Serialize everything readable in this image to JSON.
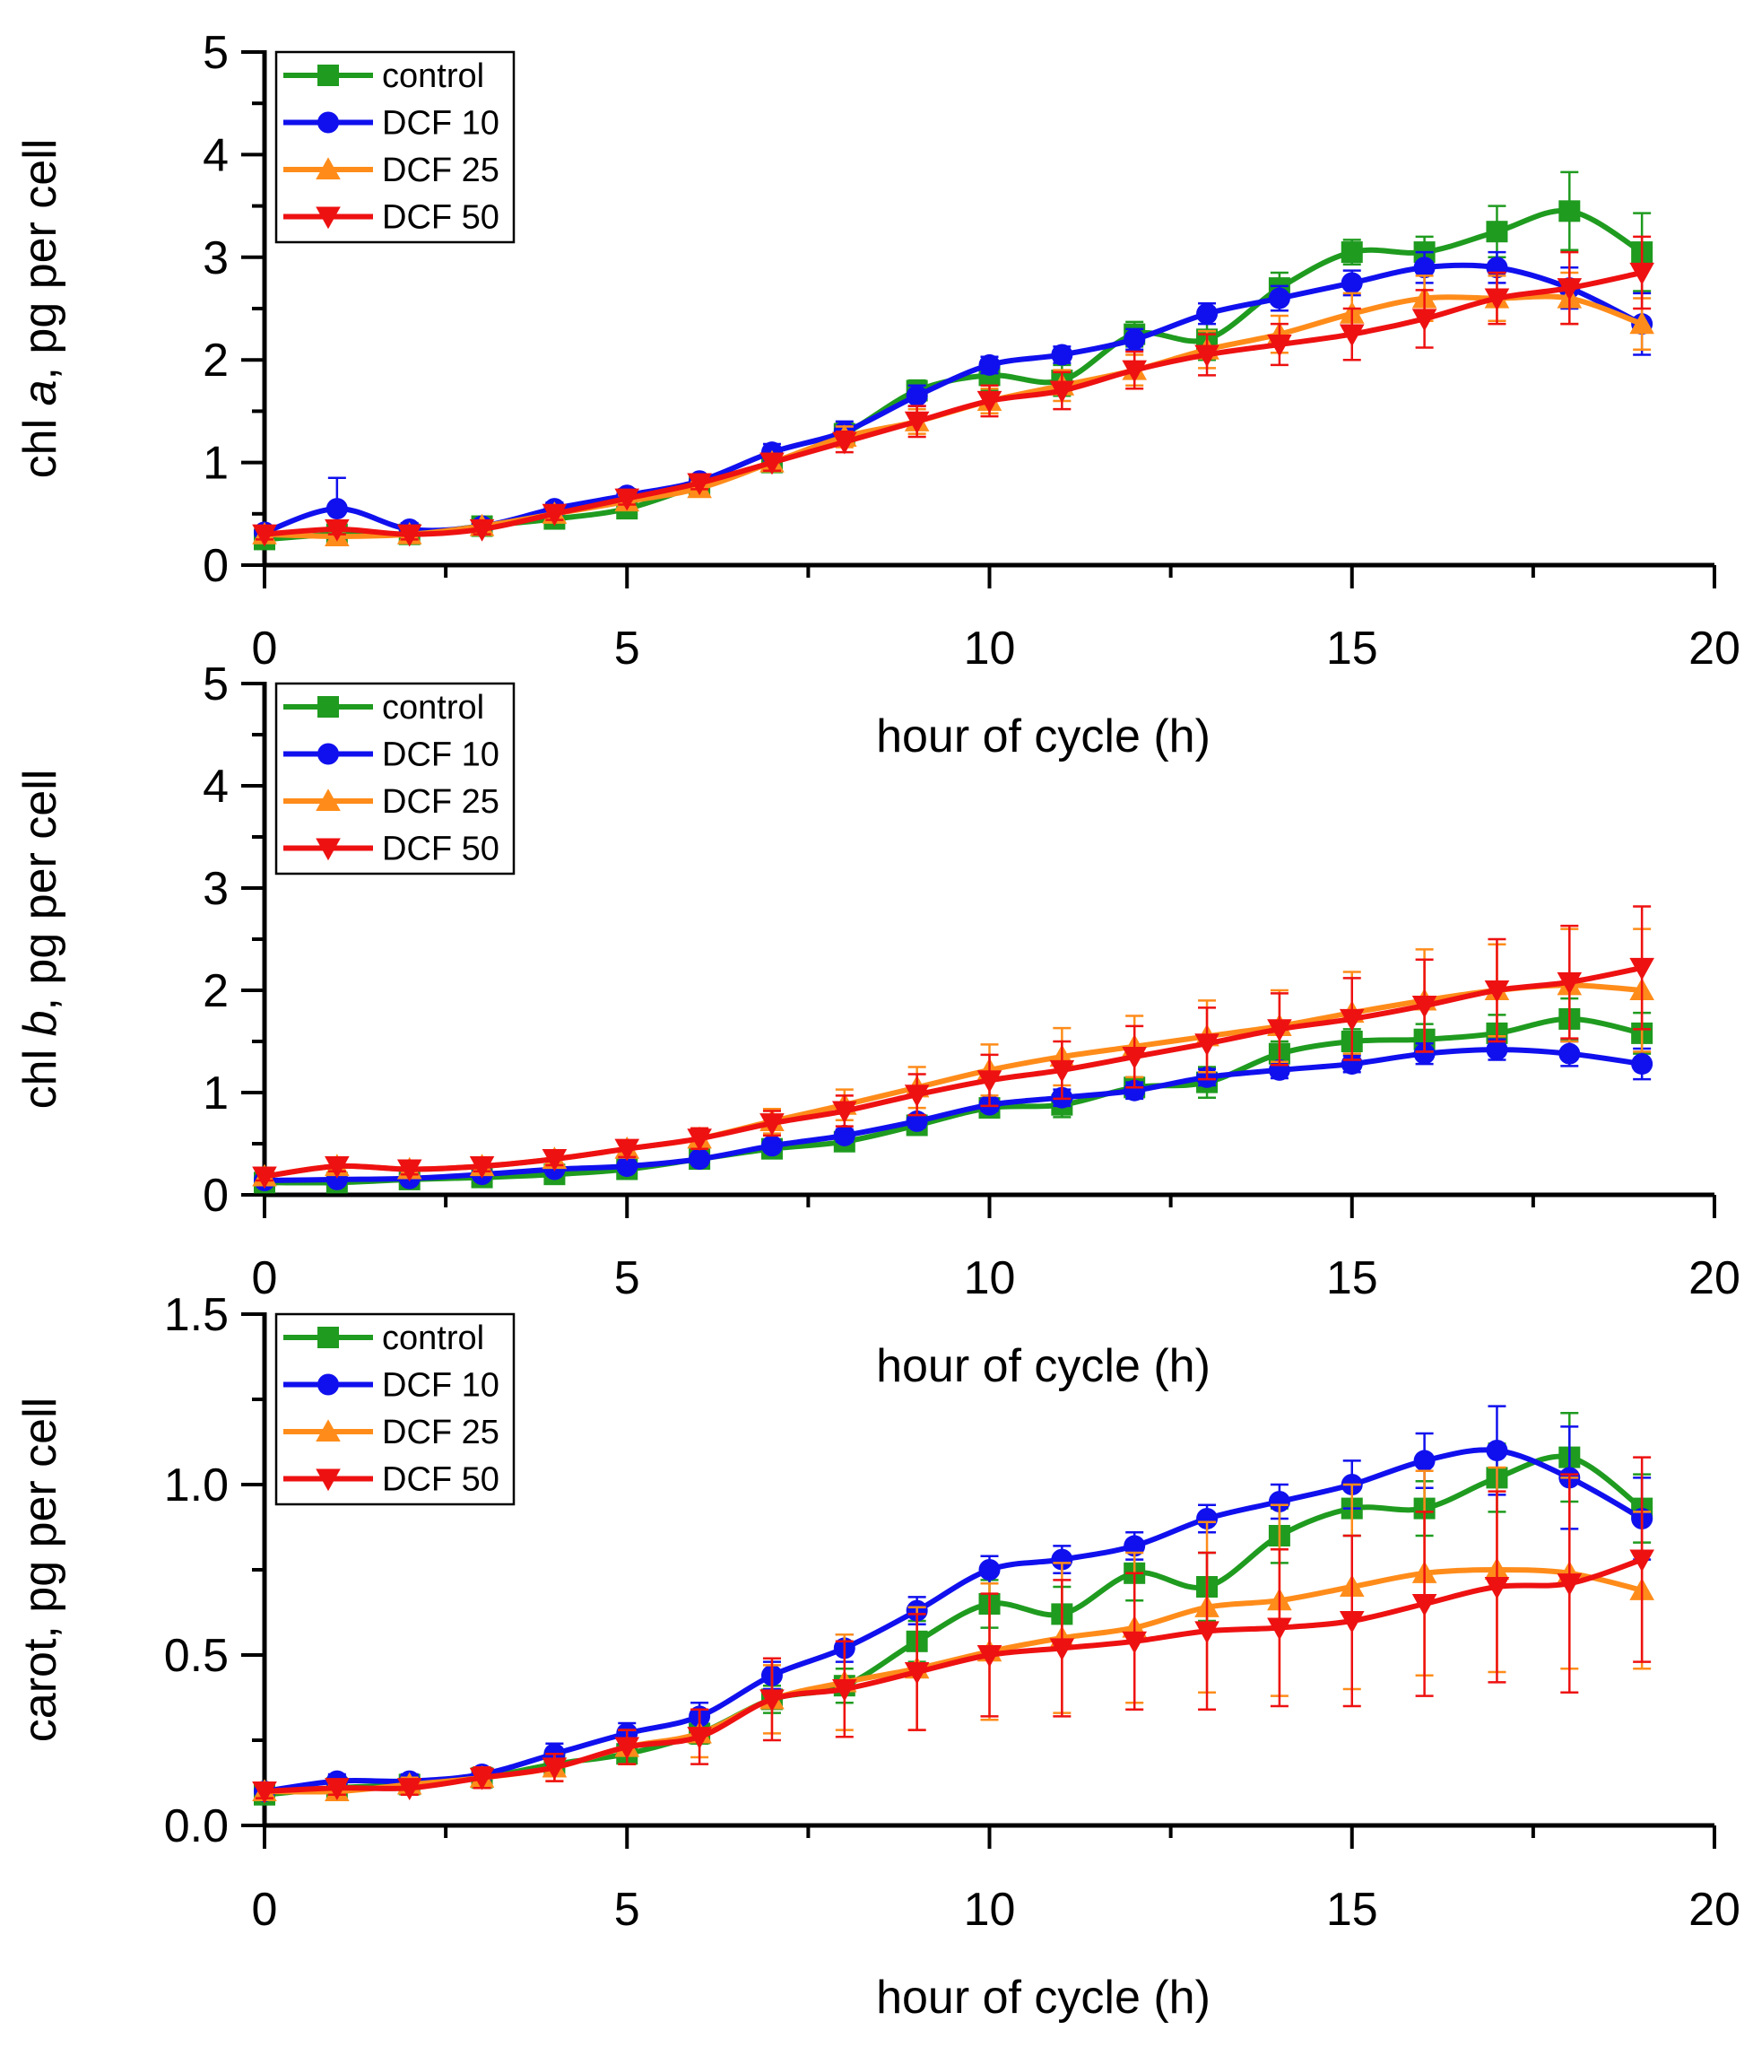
{
  "colors": {
    "control": "#1f9b1f",
    "dcf10": "#1010ee",
    "dcf25": "#ff8c1a",
    "dcf50": "#ee1111"
  },
  "legend": [
    {
      "name": "control",
      "marker": "square"
    },
    {
      "name": "DCF 10",
      "marker": "circle"
    },
    {
      "name": "DCF 25",
      "marker": "triangle-up"
    },
    {
      "name": "DCF 50",
      "marker": "triangle-down"
    }
  ],
  "chart_data": [
    {
      "type": "line",
      "ylabel_prefix": "chl ",
      "ylabel_italic": "a",
      "ylabel_suffix": ", pg per cell",
      "xlabel": "hour of cycle (h)",
      "xlim": [
        0,
        20
      ],
      "ylim": [
        0,
        5
      ],
      "xticks": [
        "0",
        "5",
        "10",
        "15",
        "20"
      ],
      "yticks": [
        "0",
        "1",
        "2",
        "3",
        "4",
        "5"
      ],
      "x": [
        0,
        1,
        2,
        3,
        4,
        5,
        6,
        7,
        8,
        9,
        10,
        11,
        12,
        13,
        14,
        15,
        16,
        17,
        18,
        19
      ],
      "series": [
        {
          "name": "control",
          "values": [
            0.25,
            0.3,
            0.3,
            0.38,
            0.45,
            0.55,
            0.78,
            1.0,
            1.28,
            1.7,
            1.85,
            1.8,
            2.25,
            2.2,
            2.7,
            3.05,
            3.05,
            3.25,
            3.45,
            3.05
          ],
          "errors": [
            0.06,
            0.06,
            0.05,
            0.06,
            0.06,
            0.06,
            0.06,
            0.08,
            0.1,
            0.1,
            0.15,
            0.15,
            0.12,
            0.2,
            0.15,
            0.12,
            0.15,
            0.25,
            0.38,
            0.38
          ]
        },
        {
          "name": "DCF 10",
          "values": [
            0.32,
            0.55,
            0.35,
            0.38,
            0.55,
            0.68,
            0.82,
            1.1,
            1.3,
            1.65,
            1.95,
            2.05,
            2.2,
            2.45,
            2.6,
            2.75,
            2.9,
            2.9,
            2.7,
            2.35
          ],
          "errors": [
            0.06,
            0.3,
            0.06,
            0.05,
            0.06,
            0.06,
            0.06,
            0.08,
            0.1,
            0.1,
            0.08,
            0.08,
            0.1,
            0.1,
            0.12,
            0.12,
            0.15,
            0.15,
            0.2,
            0.3
          ]
        },
        {
          "name": "DCF 25",
          "values": [
            0.3,
            0.28,
            0.3,
            0.38,
            0.5,
            0.62,
            0.75,
            1.0,
            1.25,
            1.4,
            1.6,
            1.75,
            1.9,
            2.1,
            2.25,
            2.45,
            2.6,
            2.6,
            2.6,
            2.35
          ],
          "errors": [
            0.05,
            0.05,
            0.05,
            0.05,
            0.06,
            0.06,
            0.06,
            0.08,
            0.1,
            0.12,
            0.12,
            0.15,
            0.15,
            0.18,
            0.18,
            0.2,
            0.22,
            0.22,
            0.25,
            0.25
          ]
        },
        {
          "name": "DCF 50",
          "values": [
            0.3,
            0.35,
            0.3,
            0.35,
            0.5,
            0.65,
            0.8,
            1.0,
            1.2,
            1.4,
            1.6,
            1.7,
            1.9,
            2.05,
            2.15,
            2.25,
            2.4,
            2.6,
            2.7,
            2.85
          ],
          "errors": [
            0.05,
            0.05,
            0.05,
            0.05,
            0.06,
            0.06,
            0.06,
            0.08,
            0.1,
            0.15,
            0.15,
            0.18,
            0.18,
            0.2,
            0.2,
            0.25,
            0.28,
            0.25,
            0.35,
            0.35
          ]
        }
      ]
    },
    {
      "type": "line",
      "ylabel_prefix": "chl ",
      "ylabel_italic": "b",
      "ylabel_suffix": ", pg per cell",
      "xlabel": "hour of cycle (h)",
      "xlim": [
        0,
        20
      ],
      "ylim": [
        0,
        5
      ],
      "xticks": [
        "0",
        "5",
        "10",
        "15",
        "20"
      ],
      "yticks": [
        "0",
        "1",
        "2",
        "3",
        "4",
        "5"
      ],
      "x": [
        0,
        1,
        2,
        3,
        4,
        5,
        6,
        7,
        8,
        9,
        10,
        11,
        12,
        13,
        14,
        15,
        16,
        17,
        18,
        19
      ],
      "series": [
        {
          "name": "control",
          "values": [
            0.12,
            0.12,
            0.15,
            0.17,
            0.2,
            0.25,
            0.35,
            0.45,
            0.52,
            0.68,
            0.85,
            0.88,
            1.05,
            1.1,
            1.38,
            1.5,
            1.52,
            1.58,
            1.72,
            1.58
          ],
          "errors": [
            0.03,
            0.03,
            0.03,
            0.03,
            0.04,
            0.04,
            0.05,
            0.05,
            0.06,
            0.08,
            0.08,
            0.12,
            0.1,
            0.15,
            0.12,
            0.12,
            0.15,
            0.18,
            0.2,
            0.2
          ]
        },
        {
          "name": "DCF 10",
          "values": [
            0.14,
            0.15,
            0.16,
            0.2,
            0.25,
            0.28,
            0.35,
            0.48,
            0.58,
            0.72,
            0.88,
            0.95,
            1.02,
            1.15,
            1.22,
            1.28,
            1.38,
            1.42,
            1.38,
            1.28
          ],
          "errors": [
            0.03,
            0.03,
            0.03,
            0.03,
            0.04,
            0.04,
            0.05,
            0.05,
            0.06,
            0.06,
            0.06,
            0.08,
            0.08,
            0.08,
            0.08,
            0.08,
            0.1,
            0.1,
            0.12,
            0.15
          ]
        },
        {
          "name": "DCF 25",
          "values": [
            0.18,
            0.28,
            0.25,
            0.28,
            0.35,
            0.45,
            0.55,
            0.72,
            0.88,
            1.05,
            1.22,
            1.35,
            1.45,
            1.55,
            1.65,
            1.78,
            1.9,
            2.0,
            2.05,
            2.0
          ],
          "errors": [
            0.04,
            0.05,
            0.05,
            0.05,
            0.06,
            0.08,
            0.1,
            0.12,
            0.15,
            0.2,
            0.25,
            0.28,
            0.3,
            0.35,
            0.35,
            0.4,
            0.5,
            0.45,
            0.55,
            0.6
          ]
        },
        {
          "name": "DCF 50",
          "values": [
            0.18,
            0.28,
            0.25,
            0.28,
            0.35,
            0.45,
            0.55,
            0.7,
            0.82,
            0.98,
            1.12,
            1.22,
            1.35,
            1.48,
            1.62,
            1.72,
            1.85,
            2.0,
            2.08,
            2.22
          ],
          "errors": [
            0.04,
            0.05,
            0.05,
            0.05,
            0.06,
            0.08,
            0.1,
            0.12,
            0.15,
            0.2,
            0.25,
            0.28,
            0.3,
            0.35,
            0.35,
            0.4,
            0.45,
            0.5,
            0.55,
            0.6
          ]
        }
      ]
    },
    {
      "type": "line",
      "ylabel_prefix": "carot, pg per cell",
      "ylabel_italic": "",
      "ylabel_suffix": "",
      "xlabel": "hour of cycle (h)",
      "xlim": [
        0,
        20
      ],
      "ylim": [
        0,
        1.5
      ],
      "xticks": [
        "0",
        "5",
        "10",
        "15",
        "20"
      ],
      "yticks": [
        "0.0",
        "0.5",
        "1.0",
        "1.5"
      ],
      "x": [
        0,
        1,
        2,
        3,
        4,
        5,
        6,
        7,
        8,
        9,
        10,
        11,
        12,
        13,
        14,
        15,
        16,
        17,
        18,
        19
      ],
      "series": [
        {
          "name": "control",
          "values": [
            0.09,
            0.11,
            0.12,
            0.14,
            0.18,
            0.21,
            0.27,
            0.37,
            0.41,
            0.54,
            0.65,
            0.62,
            0.74,
            0.7,
            0.85,
            0.93,
            0.93,
            1.02,
            1.08,
            0.93
          ],
          "errors": [
            0.02,
            0.02,
            0.02,
            0.02,
            0.03,
            0.03,
            0.03,
            0.04,
            0.05,
            0.06,
            0.07,
            0.08,
            0.08,
            0.1,
            0.08,
            0.08,
            0.08,
            0.1,
            0.13,
            0.1
          ]
        },
        {
          "name": "DCF 10",
          "values": [
            0.1,
            0.13,
            0.13,
            0.15,
            0.21,
            0.27,
            0.32,
            0.44,
            0.52,
            0.63,
            0.75,
            0.78,
            0.82,
            0.9,
            0.95,
            1.0,
            1.07,
            1.1,
            1.02,
            0.9
          ],
          "errors": [
            0.02,
            0.02,
            0.02,
            0.02,
            0.03,
            0.03,
            0.04,
            0.04,
            0.04,
            0.04,
            0.04,
            0.04,
            0.04,
            0.04,
            0.05,
            0.07,
            0.08,
            0.13,
            0.15,
            0.12
          ]
        },
        {
          "name": "DCF 25",
          "values": [
            0.1,
            0.1,
            0.12,
            0.14,
            0.17,
            0.23,
            0.27,
            0.37,
            0.42,
            0.46,
            0.51,
            0.55,
            0.58,
            0.64,
            0.66,
            0.7,
            0.74,
            0.75,
            0.74,
            0.69
          ],
          "errors": [
            0.02,
            0.02,
            0.02,
            0.03,
            0.04,
            0.05,
            0.07,
            0.1,
            0.14,
            0.18,
            0.2,
            0.22,
            0.22,
            0.25,
            0.28,
            0.3,
            0.3,
            0.3,
            0.28,
            0.23
          ]
        },
        {
          "name": "DCF 50",
          "values": [
            0.1,
            0.11,
            0.11,
            0.14,
            0.17,
            0.23,
            0.26,
            0.37,
            0.4,
            0.45,
            0.5,
            0.52,
            0.54,
            0.57,
            0.58,
            0.6,
            0.65,
            0.7,
            0.71,
            0.78
          ],
          "errors": [
            0.02,
            0.02,
            0.02,
            0.03,
            0.04,
            0.05,
            0.08,
            0.12,
            0.14,
            0.17,
            0.18,
            0.2,
            0.2,
            0.23,
            0.23,
            0.25,
            0.27,
            0.28,
            0.32,
            0.3
          ]
        }
      ]
    }
  ]
}
